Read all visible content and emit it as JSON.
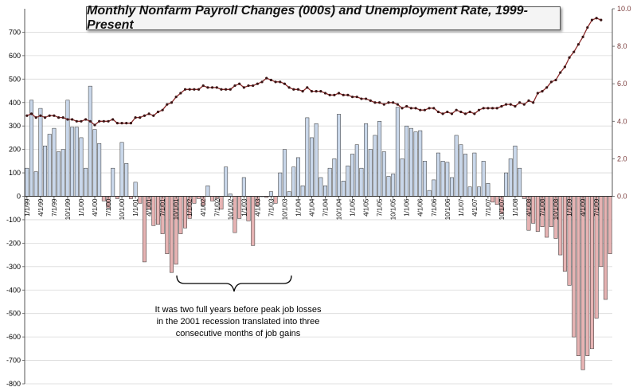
{
  "chart_data": {
    "type": "bar+line",
    "title": "Monthly Nonfarm Payroll Changes (000s) and Unemployment Rate, 1999-Present",
    "annotation": "It was two full years before peak job losses in the 2001 recession translated into three consecutive months of job gains",
    "y_left": {
      "ylim": [
        -800,
        800
      ],
      "ticks": [
        "-800",
        "-700",
        "-600",
        "-500",
        "-400",
        "-300",
        "-200",
        "-100",
        "0",
        "100",
        "200",
        "300",
        "400",
        "500",
        "600",
        "700"
      ]
    },
    "y_right": {
      "ylim": [
        0,
        10
      ],
      "ticks": [
        "0.0",
        "2.0",
        "4.0",
        "6.0",
        "8.0",
        "10.0"
      ]
    },
    "x_tick_labels": [
      "1/1/99",
      "4/1/99",
      "7/1/99",
      "10/1/99",
      "1/1/00",
      "4/1/00",
      "7/1/00",
      "10/1/00",
      "1/1/01",
      "4/1/01",
      "7/1/01",
      "10/1/01",
      "1/1/02",
      "4/1/02",
      "7/1/02",
      "10/1/02",
      "1/1/03",
      "4/1/03",
      "7/1/03",
      "10/1/03",
      "1/1/04",
      "4/1/04",
      "7/1/04",
      "10/1/04",
      "1/1/05",
      "4/1/05",
      "7/1/05",
      "10/1/05",
      "1/1/06",
      "4/1/06",
      "7/1/06",
      "10/1/06",
      "1/1/07",
      "4/1/07",
      "7/1/07",
      "10/1/07",
      "1/1/08",
      "4/1/08",
      "7/1/08",
      "10/1/08",
      "1/1/09",
      "4/1/09",
      "7/1/09"
    ],
    "series": [
      {
        "kind": "bar",
        "positive_color": "#c9d7ea",
        "negative_color": "#e6b3b3",
        "values": [
          120,
          410,
          105,
          375,
          215,
          265,
          290,
          190,
          200,
          410,
          295,
          295,
          250,
          120,
          470,
          285,
          225,
          -20,
          -50,
          120,
          -10,
          230,
          140,
          -10,
          60,
          -30,
          -280,
          -55,
          -125,
          -120,
          -160,
          -245,
          -325,
          -290,
          -160,
          -135,
          -95,
          -30,
          -10,
          -40,
          45,
          -20,
          -10,
          -55,
          125,
          10,
          -155,
          -95,
          80,
          -105,
          -210,
          -40,
          0,
          -5,
          20,
          -30,
          100,
          200,
          20,
          125,
          165,
          45,
          335,
          250,
          310,
          80,
          45,
          120,
          160,
          350,
          65,
          130,
          180,
          220,
          120,
          310,
          200,
          260,
          320,
          190,
          85,
          95,
          380,
          160,
          300,
          290,
          275,
          280,
          150,
          25,
          70,
          185,
          150,
          145,
          80,
          260,
          220,
          180,
          40,
          185,
          40,
          150,
          55,
          -25,
          -35,
          -75,
          100,
          160,
          215,
          120,
          -10,
          -145,
          -115,
          -150,
          -130,
          -175,
          -130,
          -180,
          -250,
          -320,
          -380,
          -600,
          -680,
          -740,
          -680,
          -650,
          -520,
          -300,
          -440,
          -245
        ]
      },
      {
        "kind": "line",
        "color": "#8b2a2a",
        "values": [
          4.3,
          4.4,
          4.2,
          4.3,
          4.2,
          4.3,
          4.3,
          4.2,
          4.2,
          4.1,
          4.1,
          4.0,
          4.0,
          4.1,
          4.0,
          3.8,
          4.0,
          4.0,
          4.0,
          4.1,
          3.9,
          3.9,
          3.9,
          3.9,
          4.2,
          4.2,
          4.3,
          4.4,
          4.3,
          4.5,
          4.6,
          4.9,
          5.0,
          5.3,
          5.5,
          5.7,
          5.7,
          5.7,
          5.7,
          5.9,
          5.8,
          5.8,
          5.8,
          5.7,
          5.7,
          5.7,
          5.9,
          6.0,
          5.8,
          5.9,
          5.9,
          6.0,
          6.1,
          6.3,
          6.2,
          6.1,
          6.1,
          6.0,
          5.8,
          5.7,
          5.7,
          5.6,
          5.8,
          5.6,
          5.6,
          5.6,
          5.5,
          5.4,
          5.4,
          5.5,
          5.4,
          5.4,
          5.3,
          5.3,
          5.2,
          5.2,
          5.1,
          5.0,
          5.0,
          4.9,
          5.0,
          5.0,
          4.9,
          4.7,
          4.8,
          4.7,
          4.7,
          4.6,
          4.6,
          4.7,
          4.7,
          4.5,
          4.4,
          4.5,
          4.4,
          4.6,
          4.5,
          4.4,
          4.5,
          4.4,
          4.6,
          4.7,
          4.7,
          4.7,
          4.7,
          4.8,
          4.9,
          4.9,
          4.8,
          5.0,
          4.9,
          5.1,
          5.0,
          5.5,
          5.6,
          5.8,
          6.1,
          6.2,
          6.6,
          6.9,
          7.4,
          7.7,
          8.1,
          8.5,
          9.0,
          9.4,
          9.5,
          9.4
        ]
      }
    ]
  }
}
